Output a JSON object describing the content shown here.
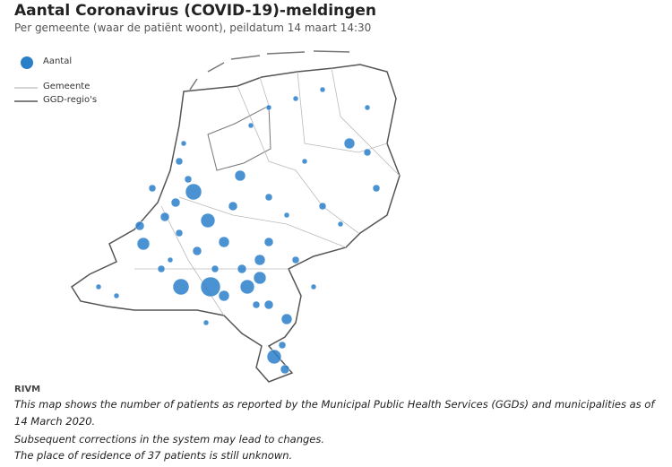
{
  "header": {
    "title": "Aantal Coronavirus (COVID-19)-meldingen",
    "subtitle": "Per gemeente (waar de patiënt woont), peildatum 14 maart 14:30"
  },
  "legend": {
    "bubble": "Aantal",
    "municipality": "Gemeente",
    "region": "GGD-regio's"
  },
  "footer": {
    "source": "RIVM",
    "notes": [
      "This map shows the number of patients as reported by the Municipal Public Health Services (GGDs) and municipalities as of 14 March 2020.",
      "Subsequent corrections in the system may lead to changes.",
      "The place of residence of 37 patients is still unknown."
    ]
  }
}
